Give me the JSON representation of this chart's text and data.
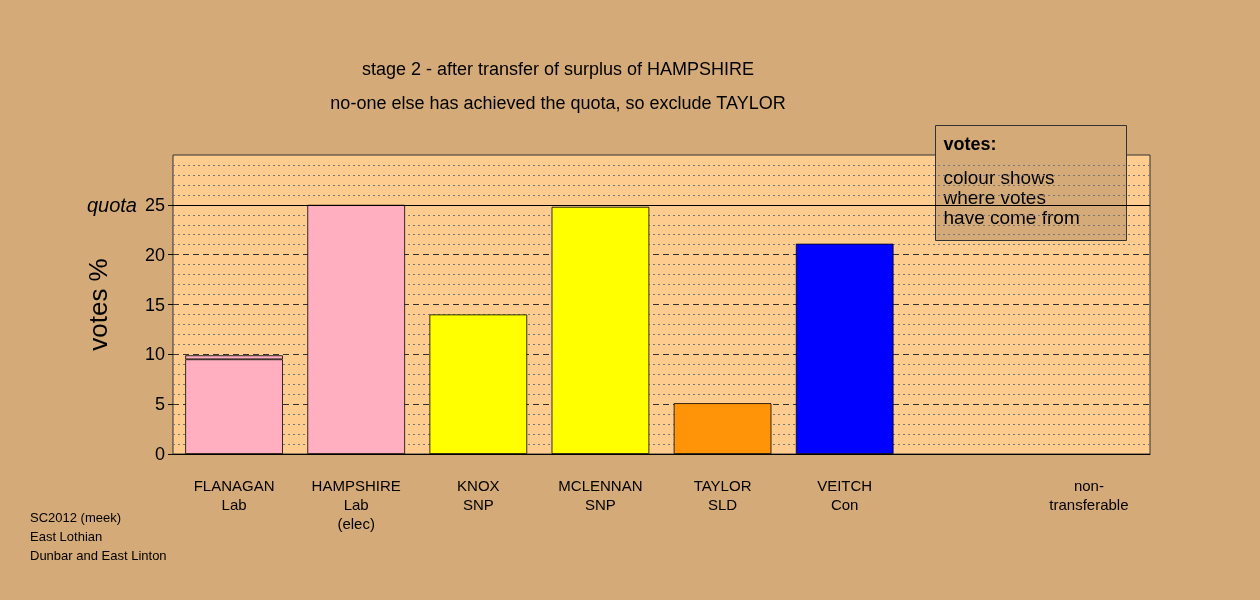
{
  "chart_data": {
    "type": "bar",
    "title": "stage 2 - after transfer of surplus of HAMPSHIRE",
    "subtitle": "no-one else has achieved the quota, so exclude TAYLOR",
    "ylabel": "votes %",
    "categories": [
      "FLANAGAN\nLab",
      "HAMPSHIRE\nLab\n(elec)",
      "KNOX\nSNP",
      "MCLENNAN\nSNP",
      "TAYLOR\nSLD",
      "VEITCH\nCon",
      null,
      "non-\ntransferable"
    ],
    "stacked": true,
    "series": [
      {
        "colors": [
          "#ffafc0",
          "#ffafc0",
          "#ffff00",
          "#ffff00",
          "#ff9408",
          "#0000ff",
          "#ffafc0",
          "#ffafc0"
        ],
        "values": [
          9.5,
          25,
          14,
          24.8,
          5.1,
          21.1,
          null,
          0
        ]
      },
      {
        "colors": [
          "#ffafc0",
          "#ffafc0",
          "#ffafc0",
          "#ffafc0",
          "#ffafc0",
          "#ffafc0",
          "#ffafc0",
          "#ffafc0"
        ],
        "values": [
          0.4,
          0,
          0,
          0,
          0,
          0,
          null,
          0
        ]
      }
    ],
    "ylim": [
      0,
      30
    ],
    "yticks": [
      0,
      5,
      10,
      15,
      20,
      25
    ],
    "grid": "y",
    "ref_lines": [
      {
        "axis": "y",
        "value": 25,
        "label": "quota"
      }
    ],
    "annotations": [
      "votes:",
      "colour shows\nwhere votes\nhave come from",
      "SC2012 (meek)\nEast Lothian\nDunbar and East Linton"
    ]
  }
}
